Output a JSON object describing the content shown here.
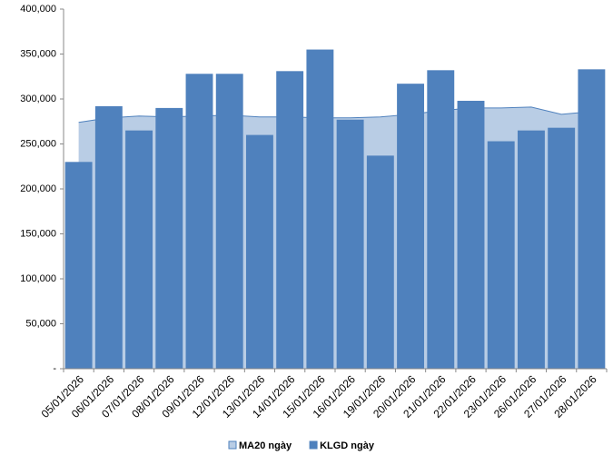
{
  "chart_data": {
    "type": "bar_area",
    "categories": [
      "05/01/2026",
      "06/01/2026",
      "07/01/2026",
      "08/01/2026",
      "09/01/2026",
      "12/01/2026",
      "13/01/2026",
      "14/01/2026",
      "15/01/2026",
      "16/01/2026",
      "19/01/2026",
      "20/01/2026",
      "21/01/2026",
      "22/01/2026",
      "23/01/2026",
      "26/01/2026",
      "27/01/2026",
      "28/01/2026"
    ],
    "series": [
      {
        "name": "MA20 ngày",
        "type": "area",
        "color": "#b9cde5",
        "line_color": "#4f81bd",
        "values": [
          274000,
          279000,
          281000,
          280000,
          281000,
          282000,
          280000,
          280000,
          279000,
          279000,
          280000,
          283000,
          287000,
          290000,
          290000,
          291000,
          283000,
          286000
        ]
      },
      {
        "name": "KLGD ngày",
        "type": "bar",
        "color": "#4f81bd",
        "values": [
          230000,
          292000,
          265000,
          290000,
          328000,
          328000,
          260000,
          331000,
          355000,
          277000,
          237000,
          317000,
          332000,
          298000,
          253000,
          265000,
          268000,
          333000
        ]
      }
    ],
    "ylim": [
      0,
      400000
    ],
    "yticks": [
      {
        "value": 0,
        "label": "-"
      },
      {
        "value": 50000,
        "label": "50,000"
      },
      {
        "value": 100000,
        "label": "100,000"
      },
      {
        "value": 150000,
        "label": "150,000"
      },
      {
        "value": 200000,
        "label": "200,000"
      },
      {
        "value": 250000,
        "label": "250,000"
      },
      {
        "value": 300000,
        "label": "300,000"
      },
      {
        "value": 350000,
        "label": "350,000"
      },
      {
        "value": 400000,
        "label": "400,000"
      }
    ],
    "legend": "bottom"
  }
}
